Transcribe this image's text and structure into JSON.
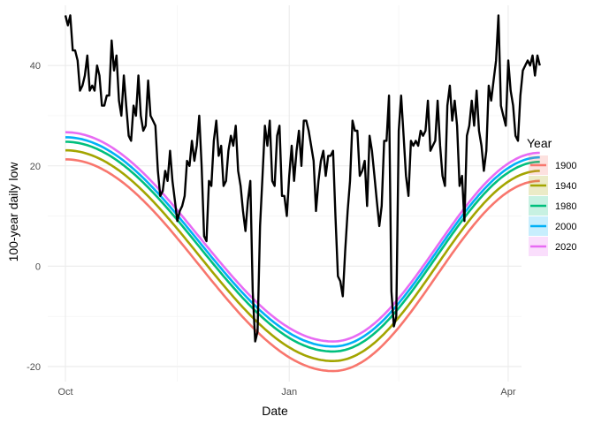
{
  "chart_data": {
    "type": "line",
    "title": "",
    "xlabel": "Date",
    "ylabel": "100-year daily low",
    "x_axis": {
      "type": "date",
      "range": [
        "Oct 1",
        "Apr 30"
      ],
      "ticks": [
        {
          "label": "Oct",
          "day": 0
        },
        {
          "label": "Jan",
          "day": 92
        },
        {
          "label": "Apr",
          "day": 182
        }
      ]
    },
    "y_axis": {
      "range": [
        -23,
        52
      ],
      "ticks": [
        -20,
        0,
        20,
        40
      ],
      "tick_labels": [
        "-20",
        "0",
        "20",
        "40"
      ]
    },
    "grid": true,
    "legend": {
      "title": "Year",
      "placement": "right",
      "entries": [
        "1900",
        "1940",
        "1980",
        "2000",
        "2020"
      ]
    },
    "series": [
      {
        "name": "1900",
        "color": "#F8766D",
        "start": 21.3,
        "min": -20.9,
        "end": 17.0,
        "min_day": 110
      },
      {
        "name": "1940",
        "color": "#A3A500",
        "start": 23.1,
        "min": -18.9,
        "end": 19.0,
        "min_day": 110
      },
      {
        "name": "1980",
        "color": "#00BF7D",
        "start": 24.8,
        "min": -17.0,
        "end": 20.8,
        "min_day": 110
      },
      {
        "name": "2000",
        "color": "#00B0F6",
        "start": 25.7,
        "min": -16.0,
        "end": 21.7,
        "min_day": 110
      },
      {
        "name": "2020",
        "color": "#E76BF3",
        "start": 26.7,
        "min": -15.0,
        "end": 22.6,
        "min_day": 110
      }
    ],
    "observed": {
      "color": "#000000",
      "points": [
        [
          0,
          50
        ],
        [
          1,
          48
        ],
        [
          2,
          50
        ],
        [
          3,
          43
        ],
        [
          4,
          43
        ],
        [
          5,
          41
        ],
        [
          6,
          35
        ],
        [
          7,
          36
        ],
        [
          8,
          38
        ],
        [
          9,
          42
        ],
        [
          10,
          35
        ],
        [
          11,
          36
        ],
        [
          12,
          35
        ],
        [
          13,
          40
        ],
        [
          14,
          38
        ],
        [
          15,
          32
        ],
        [
          16,
          32
        ],
        [
          17,
          34
        ],
        [
          18,
          34
        ],
        [
          19,
          45
        ],
        [
          20,
          39
        ],
        [
          21,
          42
        ],
        [
          22,
          33
        ],
        [
          23,
          30
        ],
        [
          24,
          38
        ],
        [
          25,
          32
        ],
        [
          26,
          26
        ],
        [
          27,
          25
        ],
        [
          28,
          32
        ],
        [
          29,
          30
        ],
        [
          30,
          38
        ],
        [
          31,
          30
        ],
        [
          32,
          27
        ],
        [
          33,
          28
        ],
        [
          34,
          37
        ],
        [
          35,
          30
        ],
        [
          36,
          29
        ],
        [
          37,
          28
        ],
        [
          38,
          19
        ],
        [
          39,
          14
        ],
        [
          40,
          15
        ],
        [
          41,
          19
        ],
        [
          42,
          17
        ],
        [
          43,
          23
        ],
        [
          44,
          17
        ],
        [
          45,
          13
        ],
        [
          46,
          9
        ],
        [
          47,
          11
        ],
        [
          48,
          12
        ],
        [
          49,
          14
        ],
        [
          50,
          21
        ],
        [
          51,
          20
        ],
        [
          52,
          25
        ],
        [
          53,
          21
        ],
        [
          54,
          24
        ],
        [
          55,
          30
        ],
        [
          56,
          20
        ],
        [
          57,
          6
        ],
        [
          58,
          5
        ],
        [
          59,
          17
        ],
        [
          60,
          16
        ],
        [
          61,
          25
        ],
        [
          62,
          29
        ],
        [
          63,
          22
        ],
        [
          64,
          24
        ],
        [
          65,
          16
        ],
        [
          66,
          17
        ],
        [
          67,
          23
        ],
        [
          68,
          26
        ],
        [
          69,
          24
        ],
        [
          70,
          28
        ],
        [
          71,
          19
        ],
        [
          72,
          16
        ],
        [
          73,
          11
        ],
        [
          74,
          7
        ],
        [
          75,
          13
        ],
        [
          76,
          17
        ],
        [
          77,
          -5
        ],
        [
          78,
          -15
        ],
        [
          79,
          -13
        ],
        [
          80,
          8
        ],
        [
          81,
          18
        ],
        [
          82,
          28
        ],
        [
          83,
          24
        ],
        [
          84,
          29
        ],
        [
          85,
          17
        ],
        [
          86,
          16
        ],
        [
          87,
          26
        ],
        [
          88,
          28
        ],
        [
          89,
          14
        ],
        [
          90,
          14
        ],
        [
          91,
          10
        ],
        [
          92,
          18
        ],
        [
          93,
          24
        ],
        [
          94,
          17
        ],
        [
          95,
          23
        ],
        [
          96,
          27
        ],
        [
          97,
          20
        ],
        [
          98,
          29
        ],
        [
          99,
          29
        ],
        [
          100,
          27
        ],
        [
          101,
          24
        ],
        [
          102,
          21
        ],
        [
          103,
          11
        ],
        [
          104,
          17
        ],
        [
          105,
          21
        ],
        [
          106,
          23
        ],
        [
          107,
          18
        ],
        [
          108,
          22
        ],
        [
          109,
          22
        ],
        [
          110,
          23
        ],
        [
          111,
          10
        ],
        [
          112,
          -2
        ],
        [
          113,
          -3
        ],
        [
          114,
          -6
        ],
        [
          115,
          3
        ],
        [
          116,
          11
        ],
        [
          117,
          17
        ],
        [
          118,
          29
        ],
        [
          119,
          27
        ],
        [
          120,
          27
        ],
        [
          121,
          18
        ],
        [
          122,
          19
        ],
        [
          123,
          21
        ],
        [
          124,
          12
        ],
        [
          125,
          26
        ],
        [
          126,
          23
        ],
        [
          127,
          18
        ],
        [
          128,
          13
        ],
        [
          129,
          8
        ],
        [
          130,
          12
        ],
        [
          131,
          25
        ],
        [
          132,
          25
        ],
        [
          133,
          34
        ],
        [
          134,
          -5
        ],
        [
          135,
          -12
        ],
        [
          136,
          -10
        ],
        [
          137,
          27
        ],
        [
          138,
          34
        ],
        [
          139,
          26
        ],
        [
          140,
          18
        ],
        [
          141,
          14
        ],
        [
          142,
          25
        ],
        [
          143,
          24
        ],
        [
          144,
          25
        ],
        [
          145,
          24
        ],
        [
          146,
          27
        ],
        [
          147,
          26
        ],
        [
          148,
          27
        ],
        [
          149,
          33
        ],
        [
          150,
          23
        ],
        [
          151,
          24
        ],
        [
          152,
          25
        ],
        [
          153,
          33
        ],
        [
          154,
          24
        ],
        [
          155,
          18
        ],
        [
          156,
          16
        ],
        [
          157,
          32
        ],
        [
          158,
          36
        ],
        [
          159,
          29
        ],
        [
          160,
          33
        ],
        [
          161,
          28
        ],
        [
          162,
          16
        ],
        [
          163,
          18
        ],
        [
          164,
          9
        ],
        [
          165,
          26
        ],
        [
          166,
          28
        ],
        [
          167,
          33
        ],
        [
          168,
          28
        ],
        [
          169,
          35
        ],
        [
          170,
          27
        ],
        [
          171,
          24
        ],
        [
          172,
          19
        ],
        [
          173,
          23
        ],
        [
          174,
          36
        ],
        [
          175,
          33
        ],
        [
          176,
          37
        ],
        [
          177,
          41
        ],
        [
          178,
          50
        ],
        [
          179,
          32
        ],
        [
          180,
          30
        ],
        [
          181,
          28
        ],
        [
          182,
          41
        ],
        [
          183,
          35
        ],
        [
          184,
          32
        ],
        [
          185,
          26
        ],
        [
          186,
          25
        ],
        [
          187,
          34
        ],
        [
          188,
          39
        ],
        [
          189,
          40
        ],
        [
          190,
          41
        ],
        [
          191,
          40
        ],
        [
          192,
          42
        ],
        [
          193,
          38
        ],
        [
          194,
          42
        ],
        [
          195,
          40
        ]
      ]
    }
  }
}
